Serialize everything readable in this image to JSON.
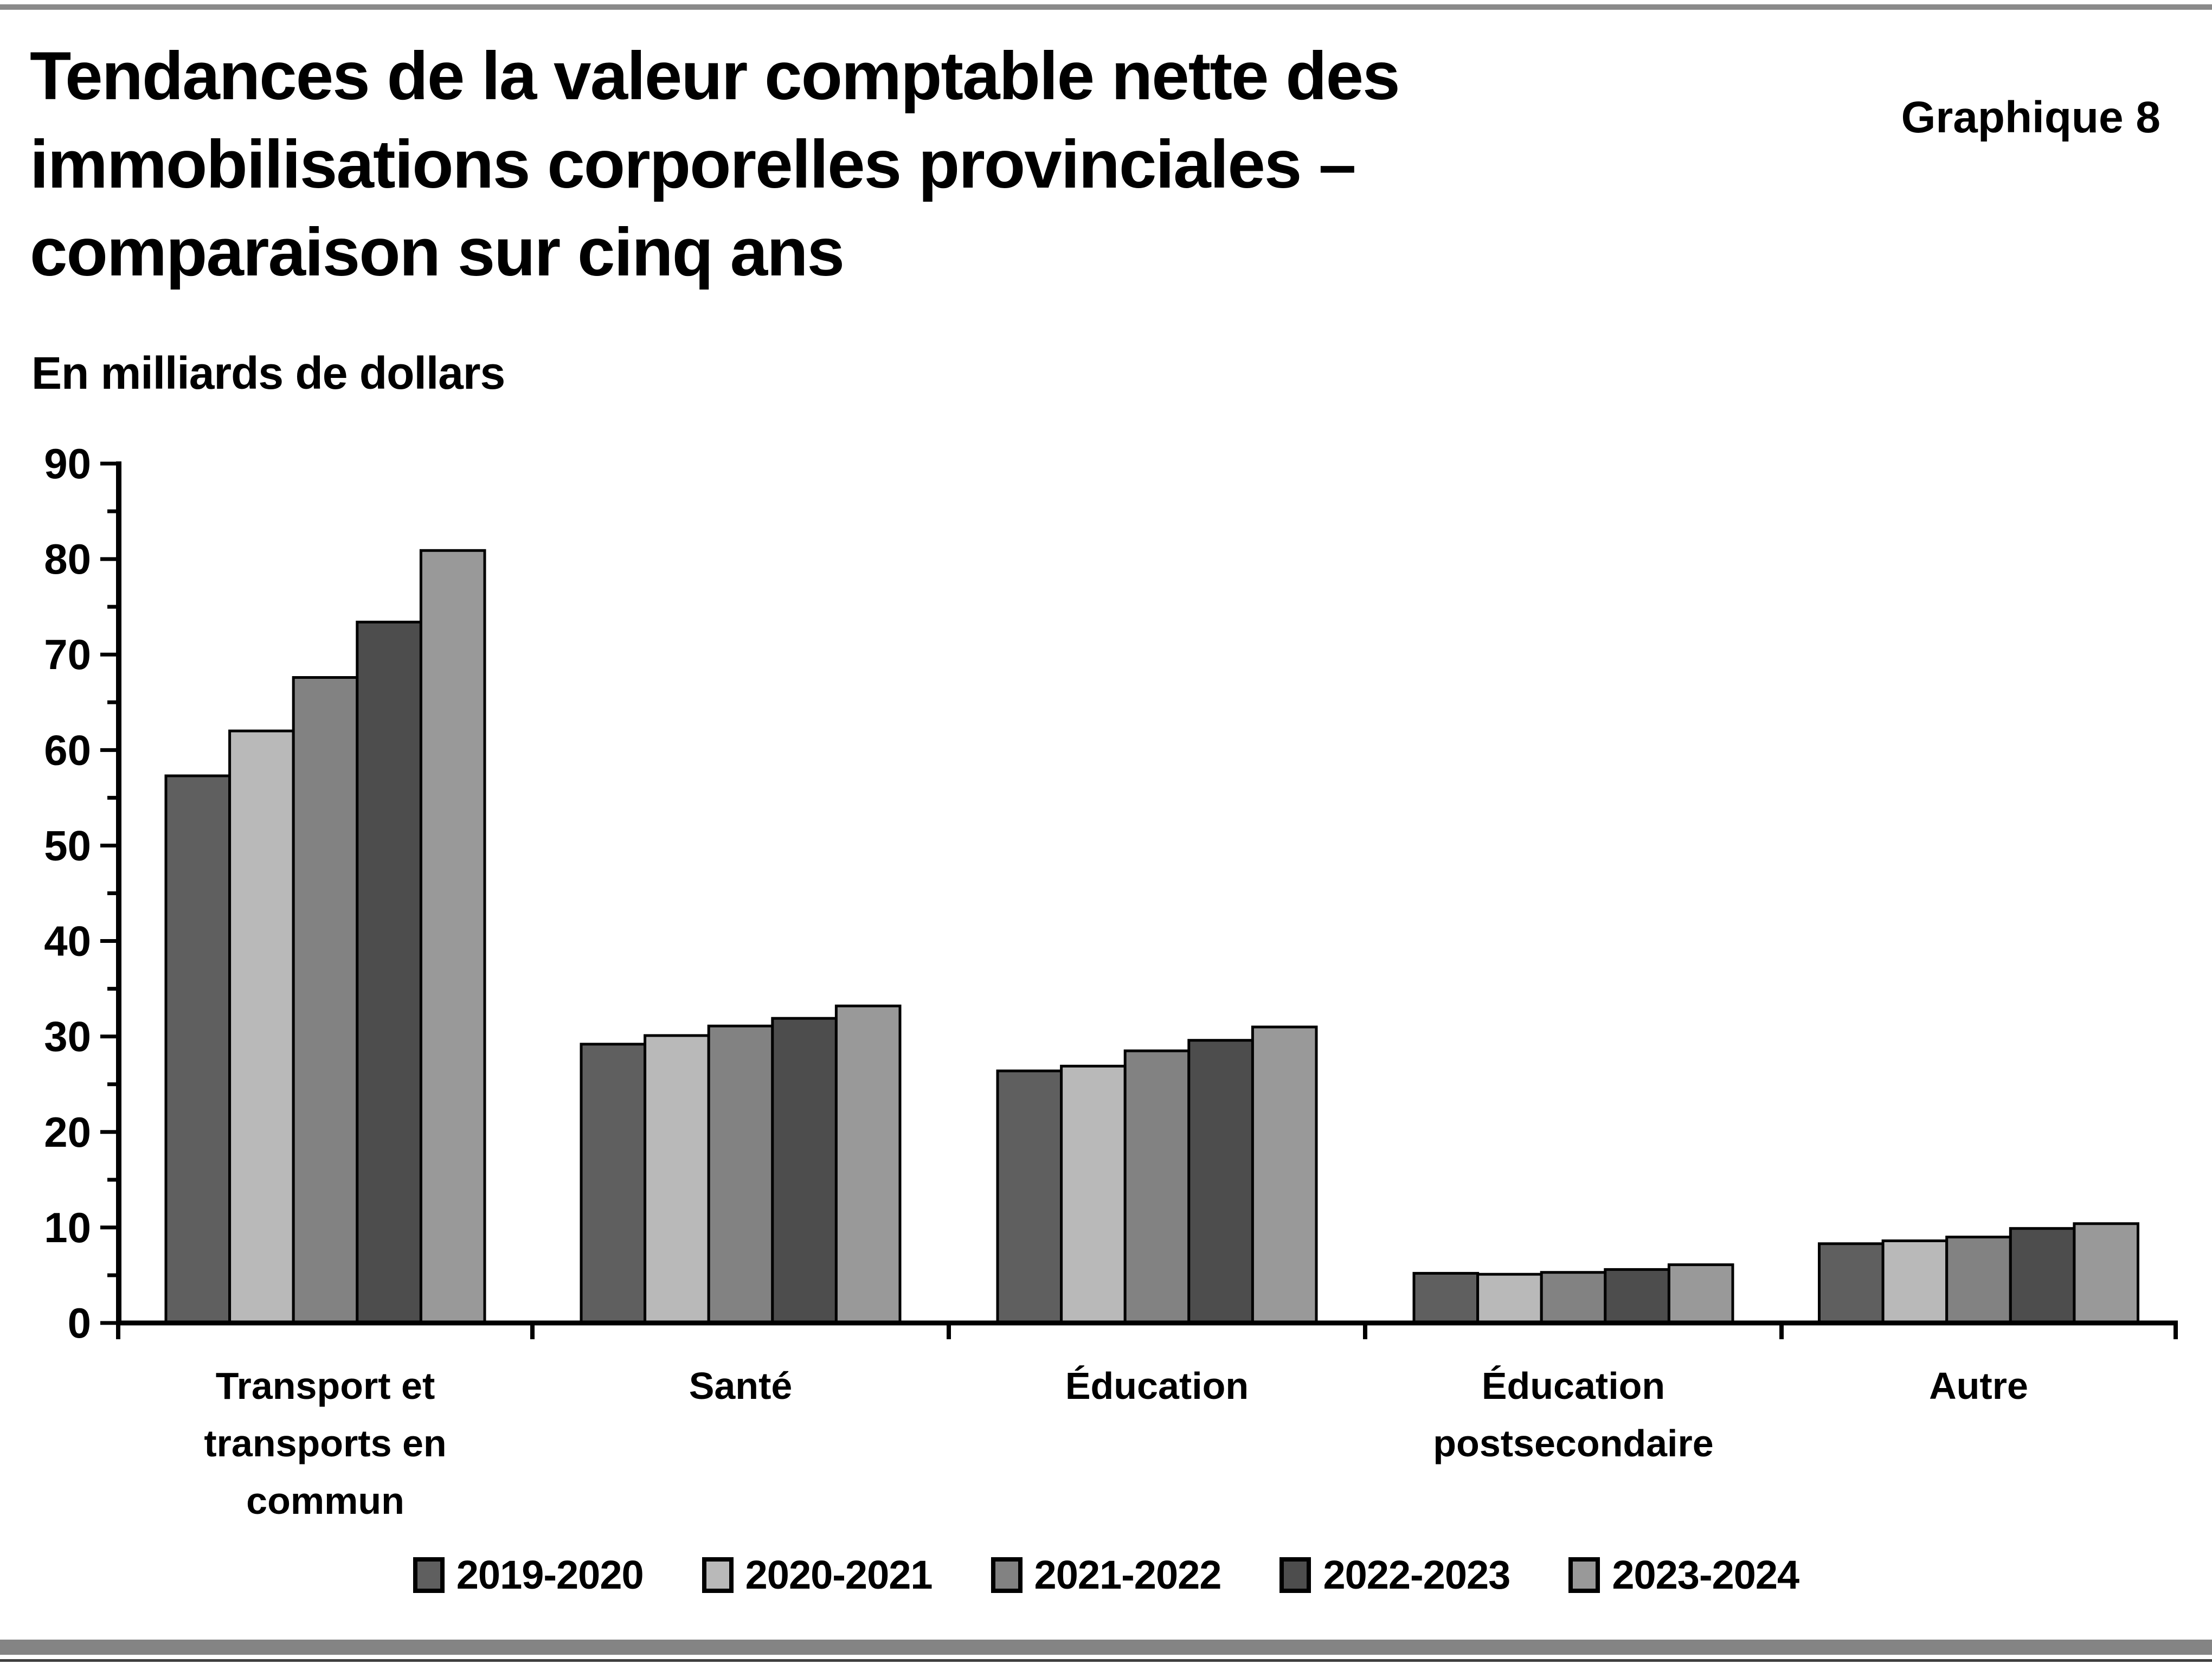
{
  "header": {
    "title": "Tendances de la valeur comptable nette des\nimmobilisations corporelles provinciales –\ncomparaison sur cinq ans",
    "figure_label": "Graphique 8",
    "units_label": "En milliards de dollars"
  },
  "chart_data": {
    "type": "bar",
    "title": "Tendances de la valeur comptable nette des immobilisations corporelles provinciales – comparaison sur cinq ans",
    "subtitle": "Graphique 8",
    "ylabel": "En milliards de dollars",
    "xlabel": "",
    "ylim": [
      0,
      90
    ],
    "ytick_step": 10,
    "yminor_step": 5,
    "grid": false,
    "legend_position": "bottom",
    "categories": [
      "Transport et transports en commun",
      "Santé",
      "Éducation",
      "Éducation postsecondaire",
      "Autre"
    ],
    "category_label_lines": [
      [
        "Transport et",
        "transports en",
        "commun"
      ],
      [
        "Santé"
      ],
      [
        "Éducation"
      ],
      [
        "Éducation",
        "postsecondaire"
      ],
      [
        "Autre"
      ]
    ],
    "yticks": [
      0,
      10,
      20,
      30,
      40,
      50,
      60,
      70,
      80,
      90
    ],
    "series": [
      {
        "name": "2019-2020",
        "color": "#5f5f5f",
        "values": [
          57.3,
          29.2,
          26.4,
          5.2,
          8.3
        ]
      },
      {
        "name": "2020-2021",
        "color": "#b9b9b9",
        "values": [
          62.0,
          30.1,
          26.9,
          5.1,
          8.6
        ]
      },
      {
        "name": "2021-2022",
        "color": "#828282",
        "values": [
          67.6,
          31.1,
          28.5,
          5.3,
          9.0
        ]
      },
      {
        "name": "2022-2023",
        "color": "#4d4d4d",
        "values": [
          73.4,
          31.9,
          29.6,
          5.6,
          9.9
        ]
      },
      {
        "name": "2023-2024",
        "color": "#999999",
        "values": [
          80.9,
          33.2,
          31.0,
          6.1,
          10.4
        ]
      }
    ],
    "bar_outline_color": "#000000",
    "axis_color": "#000000"
  }
}
